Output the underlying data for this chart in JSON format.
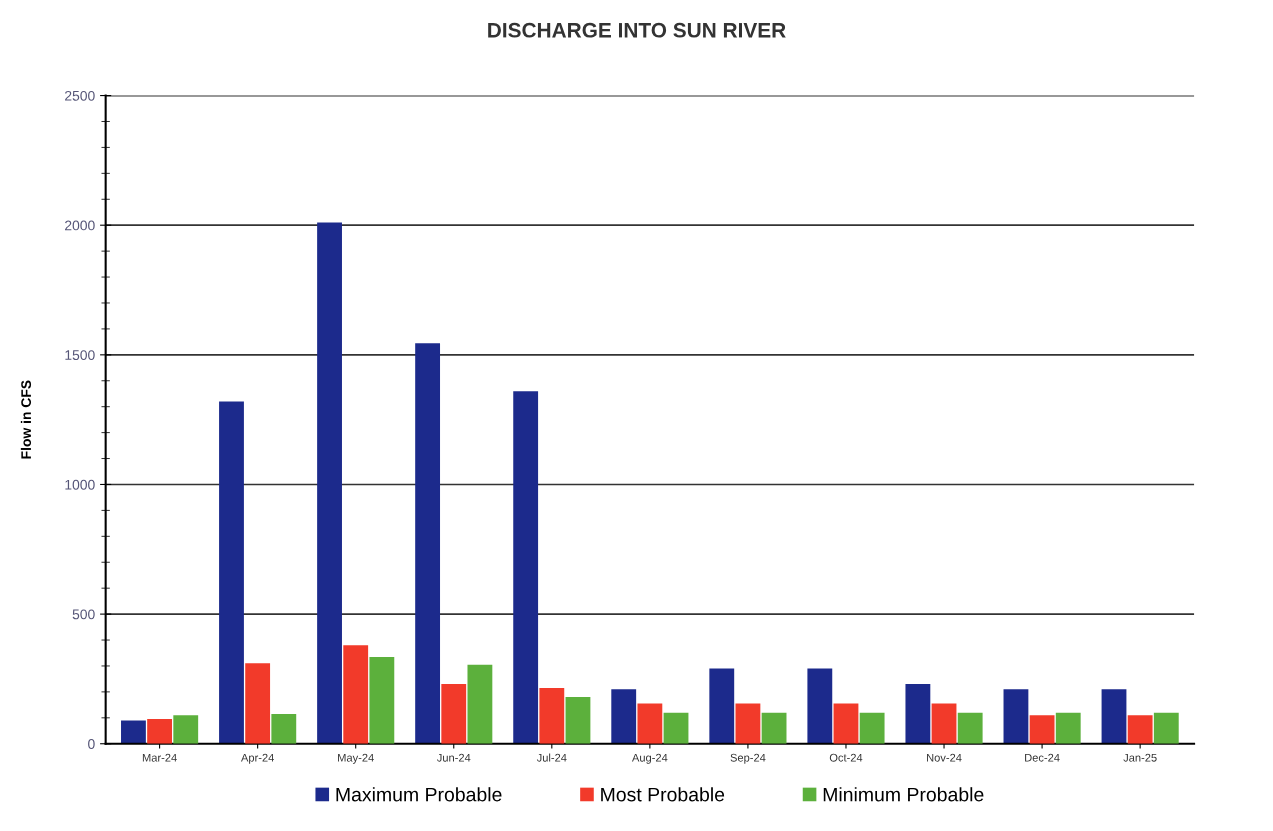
{
  "chart_data": {
    "type": "bar",
    "title": "DISCHARGE INTO SUN RIVER",
    "ylabel": "Flow in CFS",
    "categories": [
      "Mar-24",
      "Apr-24",
      "May-24",
      "Jun-24",
      "Jul-24",
      "Aug-24",
      "Sep-24",
      "Oct-24",
      "Nov-24",
      "Dec-24",
      "Jan-25"
    ],
    "series": [
      {
        "name": "Maximum Probable",
        "color": "#1c2a8c",
        "values": [
          90,
          1320,
          2010,
          1545,
          1360,
          210,
          290,
          290,
          230,
          210,
          210
        ]
      },
      {
        "name": "Most Probable",
        "color": "#f23a2a",
        "values": [
          95,
          310,
          380,
          230,
          215,
          155,
          155,
          155,
          155,
          110,
          110
        ]
      },
      {
        "name": "Minimum Probable",
        "color": "#5cb03c",
        "values": [
          110,
          115,
          335,
          305,
          180,
          120,
          120,
          120,
          120,
          120,
          120
        ]
      }
    ],
    "ylim": [
      0,
      2500
    ],
    "yticks": [
      0,
      500,
      1000,
      1500,
      2000,
      2500
    ],
    "grid": "y",
    "legend": "bottom"
  }
}
